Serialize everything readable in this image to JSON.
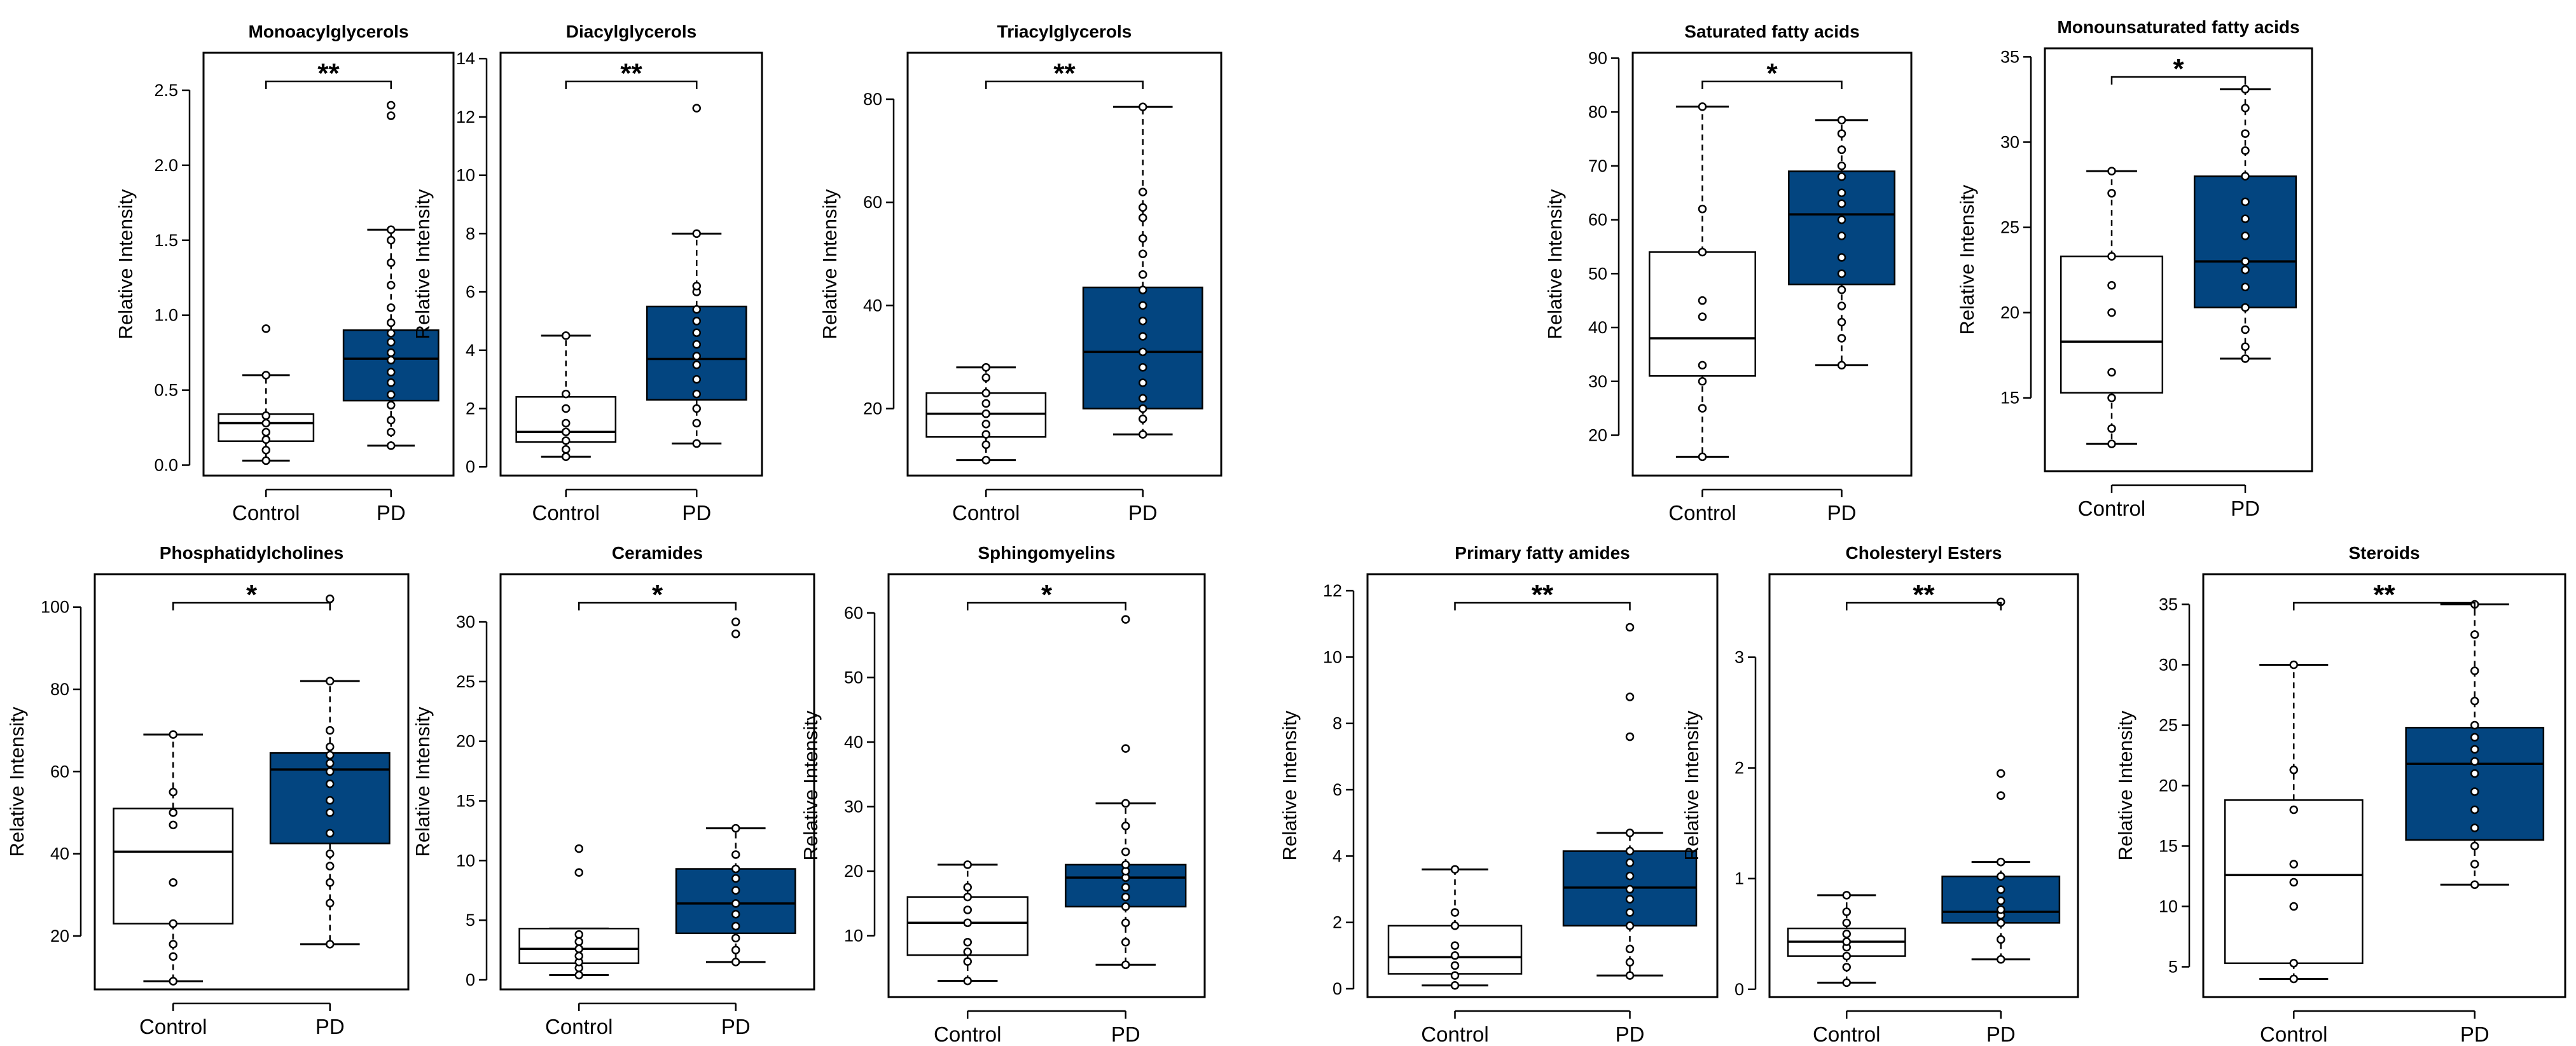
{
  "colors": {
    "control_fill": "#ffffff",
    "pd_fill": "#034580",
    "stroke": "#000000"
  },
  "chart_data": [
    {
      "type": "boxplot",
      "title": "Monoacylglycerols",
      "ylabel": "Relative Intensity",
      "categories": [
        "Control",
        "PD"
      ],
      "yticks": [
        0.0,
        0.5,
        1.0,
        1.5,
        2.0,
        2.5
      ],
      "ytick_labels": [
        "0.0",
        "0.5",
        "1.0",
        "1.5",
        "2.0",
        "2.5"
      ],
      "ylim": [
        -0.07,
        2.75
      ],
      "significance": "**",
      "boxes": [
        {
          "group": "Control",
          "whisker_low": 0.03,
          "q1": 0.16,
          "median": 0.28,
          "q3": 0.34,
          "whisker_high": 0.6,
          "points": [
            0.03,
            0.1,
            0.17,
            0.22,
            0.28,
            0.33,
            0.6,
            0.91
          ]
        },
        {
          "group": "PD",
          "whisker_low": 0.13,
          "q1": 0.43,
          "median": 0.71,
          "q3": 0.9,
          "whisker_high": 1.57,
          "points": [
            0.13,
            0.22,
            0.3,
            0.4,
            0.47,
            0.55,
            0.62,
            0.7,
            0.75,
            0.82,
            0.88,
            0.95,
            1.05,
            1.2,
            1.35,
            1.5,
            1.57,
            2.33,
            2.4
          ]
        }
      ]
    },
    {
      "type": "boxplot",
      "title": "Diacylglycerols",
      "ylabel": "Relative Intensity",
      "categories": [
        "Control",
        "PD"
      ],
      "yticks": [
        0,
        2,
        4,
        6,
        8,
        10,
        12,
        14
      ],
      "ytick_labels": [
        "0",
        "2",
        "4",
        "6",
        "8",
        "10",
        "12",
        "14"
      ],
      "ylim": [
        -0.3,
        14.2
      ],
      "significance": "**",
      "boxes": [
        {
          "group": "Control",
          "whisker_low": 0.35,
          "q1": 0.85,
          "median": 1.2,
          "q3": 2.4,
          "whisker_high": 4.5,
          "points": [
            0.35,
            0.6,
            0.9,
            1.2,
            1.5,
            2.0,
            2.5,
            4.5
          ]
        },
        {
          "group": "PD",
          "whisker_low": 0.8,
          "q1": 2.3,
          "median": 3.7,
          "q3": 5.5,
          "whisker_high": 8.0,
          "points": [
            0.8,
            1.5,
            2.0,
            2.5,
            3.0,
            3.5,
            3.8,
            4.2,
            4.6,
            5.0,
            5.4,
            6.0,
            6.2,
            8.0,
            12.3
          ]
        }
      ]
    },
    {
      "type": "boxplot",
      "title": "Triacylglycerols",
      "ylabel": "Relative Intensity",
      "categories": [
        "Control",
        "PD"
      ],
      "yticks": [
        20,
        40,
        60,
        80
      ],
      "ytick_labels": [
        "20",
        "40",
        "60",
        "80"
      ],
      "ylim": [
        7,
        89
      ],
      "significance": "**",
      "boxes": [
        {
          "group": "Control",
          "whisker_low": 10,
          "q1": 14.5,
          "median": 19,
          "q3": 23,
          "whisker_high": 28,
          "points": [
            10,
            13,
            15,
            17,
            19,
            21,
            23,
            26,
            28
          ]
        },
        {
          "group": "PD",
          "whisker_low": 15,
          "q1": 20,
          "median": 31,
          "q3": 43.5,
          "whisker_high": 78.5,
          "points": [
            15,
            18,
            20,
            22,
            25,
            28,
            31,
            34,
            37,
            40,
            43,
            46,
            50,
            53,
            57,
            59,
            62,
            78.5
          ]
        }
      ]
    },
    {
      "type": "boxplot",
      "title": "Saturated fatty acids",
      "ylabel": "Relative Intensity",
      "categories": [
        "Control",
        "PD"
      ],
      "yticks": [
        20,
        30,
        40,
        50,
        60,
        70,
        80,
        90
      ],
      "ytick_labels": [
        "20",
        "30",
        "40",
        "50",
        "60",
        "70",
        "80",
        "90"
      ],
      "ylim": [
        12.5,
        91
      ],
      "significance": "*",
      "boxes": [
        {
          "group": "Control",
          "whisker_low": 16,
          "q1": 31,
          "median": 38,
          "q3": 54,
          "whisker_high": 81,
          "points": [
            16,
            25,
            30,
            33,
            42,
            45,
            54,
            62,
            81
          ]
        },
        {
          "group": "PD",
          "whisker_low": 33,
          "q1": 48,
          "median": 61,
          "q3": 69,
          "whisker_high": 78.5,
          "points": [
            33,
            38,
            41,
            44,
            47,
            50,
            53,
            57,
            60,
            63,
            65,
            68,
            70,
            73,
            76,
            78.5
          ]
        }
      ]
    },
    {
      "type": "boxplot",
      "title": "Monounsaturated fatty acids",
      "ylabel": "Relative Intensity",
      "categories": [
        "Control",
        "PD"
      ],
      "yticks": [
        15,
        20,
        25,
        30,
        35
      ],
      "ytick_labels": [
        "15",
        "20",
        "25",
        "30",
        "35"
      ],
      "ylim": [
        10.7,
        35.5
      ],
      "significance": "*",
      "boxes": [
        {
          "group": "Control",
          "whisker_low": 12.3,
          "q1": 15.3,
          "median": 18.3,
          "q3": 23.3,
          "whisker_high": 28.3,
          "points": [
            12.3,
            13.2,
            15,
            16.5,
            20,
            21.6,
            23.3,
            27,
            28.3
          ]
        },
        {
          "group": "PD",
          "whisker_low": 17.3,
          "q1": 20.3,
          "median": 23,
          "q3": 28,
          "whisker_high": 33.1,
          "points": [
            17.3,
            18,
            19,
            20.3,
            21.5,
            22.5,
            23,
            24.5,
            25.5,
            26.5,
            28,
            29.5,
            30.5,
            32,
            33.1
          ]
        }
      ]
    },
    {
      "type": "boxplot",
      "title": "Phosphatidylcholines",
      "ylabel": "Relative Intensity",
      "categories": [
        "Control",
        "PD"
      ],
      "yticks": [
        20,
        40,
        60,
        80,
        100
      ],
      "ytick_labels": [
        "20",
        "40",
        "60",
        "80",
        "100"
      ],
      "ylim": [
        7,
        108
      ],
      "significance": "*",
      "boxes": [
        {
          "group": "Control",
          "whisker_low": 9,
          "q1": 23,
          "median": 40.5,
          "q3": 51,
          "whisker_high": 69,
          "points": [
            9,
            15,
            18,
            23,
            33,
            47,
            50,
            55,
            69
          ]
        },
        {
          "group": "PD",
          "whisker_low": 18,
          "q1": 42.5,
          "median": 60.5,
          "q3": 64.5,
          "whisker_high": 82,
          "points": [
            18,
            28,
            33,
            37,
            40,
            45,
            50,
            53,
            57,
            60,
            62,
            64,
            66,
            70,
            82,
            102
          ]
        }
      ]
    },
    {
      "type": "boxplot",
      "title": "Ceramides",
      "ylabel": "Relative Intensity",
      "categories": [
        "Control",
        "PD"
      ],
      "yticks": [
        0,
        5,
        10,
        15,
        20,
        25,
        30
      ],
      "ytick_labels": [
        "0",
        "5",
        "10",
        "15",
        "20",
        "25",
        "30"
      ],
      "ylim": [
        -0.8,
        34
      ],
      "significance": "*",
      "boxes": [
        {
          "group": "Control",
          "whisker_low": 0.4,
          "q1": 1.4,
          "median": 2.6,
          "q3": 4.3,
          "whisker_high": 4.3,
          "points": [
            0.4,
            1.0,
            1.5,
            2.0,
            2.6,
            3.2,
            3.8,
            9.0,
            11.0
          ]
        },
        {
          "group": "PD",
          "whisker_low": 1.5,
          "q1": 3.9,
          "median": 6.4,
          "q3": 9.3,
          "whisker_high": 12.7,
          "points": [
            1.5,
            2.5,
            3.5,
            4.5,
            5.5,
            6.4,
            7.5,
            8.5,
            9.3,
            10.5,
            12.7,
            29.0,
            30.0
          ]
        }
      ]
    },
    {
      "type": "boxplot",
      "title": "Sphingomyelins",
      "ylabel": "Relative Intensity",
      "categories": [
        "Control",
        "PD"
      ],
      "yticks": [
        10,
        20,
        30,
        40,
        50,
        60
      ],
      "ytick_labels": [
        "10",
        "20",
        "30",
        "40",
        "50",
        "60"
      ],
      "ylim": [
        0.5,
        66
      ],
      "significance": "*",
      "boxes": [
        {
          "group": "Control",
          "whisker_low": 3,
          "q1": 7,
          "median": 12,
          "q3": 16,
          "whisker_high": 21,
          "points": [
            3,
            6,
            7.5,
            9,
            12,
            14,
            16,
            17.5,
            21
          ]
        },
        {
          "group": "PD",
          "whisker_low": 5.5,
          "q1": 14.5,
          "median": 19,
          "q3": 21,
          "whisker_high": 30.5,
          "points": [
            5.5,
            9,
            12,
            14.5,
            16,
            17.5,
            19,
            20,
            21,
            23,
            27,
            30.5,
            39,
            59
          ]
        }
      ]
    },
    {
      "type": "boxplot",
      "title": "Primary fatty amides",
      "ylabel": "Relative Intensity",
      "categories": [
        "Control",
        "PD"
      ],
      "yticks": [
        0,
        2,
        4,
        6,
        8,
        10,
        12
      ],
      "ytick_labels": [
        "0",
        "2",
        "4",
        "6",
        "8",
        "10",
        "12"
      ],
      "ylim": [
        -0.25,
        12.5
      ],
      "significance": "**",
      "boxes": [
        {
          "group": "Control",
          "whisker_low": 0.1,
          "q1": 0.45,
          "median": 0.95,
          "q3": 1.9,
          "whisker_high": 3.6,
          "points": [
            0.1,
            0.4,
            0.7,
            1.0,
            1.3,
            1.9,
            2.3,
            3.6
          ]
        },
        {
          "group": "PD",
          "whisker_low": 0.4,
          "q1": 1.9,
          "median": 3.05,
          "q3": 4.15,
          "whisker_high": 4.7,
          "points": [
            0.4,
            0.8,
            1.2,
            1.9,
            2.3,
            2.7,
            3.0,
            3.4,
            3.8,
            4.15,
            4.7,
            7.6,
            8.8,
            10.9
          ]
        }
      ]
    },
    {
      "type": "boxplot",
      "title": "Cholesteryl Esters",
      "ylabel": "Relative Intensity",
      "categories": [
        "Control",
        "PD"
      ],
      "yticks": [
        0,
        1,
        2,
        3
      ],
      "ytick_labels": [
        "0",
        "1",
        "2",
        "3"
      ],
      "ylim": [
        -0.07,
        3.75
      ],
      "significance": "**",
      "boxes": [
        {
          "group": "Control",
          "whisker_low": 0.06,
          "q1": 0.3,
          "median": 0.43,
          "q3": 0.55,
          "whisker_high": 0.85,
          "points": [
            0.06,
            0.2,
            0.3,
            0.38,
            0.43,
            0.5,
            0.6,
            0.7,
            0.85
          ]
        },
        {
          "group": "PD",
          "whisker_low": 0.27,
          "q1": 0.6,
          "median": 0.7,
          "q3": 1.02,
          "whisker_high": 1.15,
          "points": [
            0.27,
            0.45,
            0.6,
            0.67,
            0.72,
            0.8,
            0.9,
            1.02,
            1.15,
            1.75,
            1.95,
            3.5
          ]
        }
      ]
    },
    {
      "type": "boxplot",
      "title": "Steroids",
      "ylabel": "Relative Intensity",
      "categories": [
        "Control",
        "PD"
      ],
      "yticks": [
        5,
        10,
        15,
        20,
        25,
        30,
        35
      ],
      "ytick_labels": [
        "5",
        "10",
        "15",
        "20",
        "25",
        "30",
        "35"
      ],
      "ylim": [
        2.5,
        37.5
      ],
      "significance": "**",
      "boxes": [
        {
          "group": "Control",
          "whisker_low": 4,
          "q1": 5.3,
          "median": 12.6,
          "q3": 18.8,
          "whisker_high": 30,
          "points": [
            4,
            5.3,
            10,
            12,
            13.5,
            18,
            21.3,
            30
          ]
        },
        {
          "group": "PD",
          "whisker_low": 11.8,
          "q1": 15.5,
          "median": 21.8,
          "q3": 24.8,
          "whisker_high": 35,
          "points": [
            11.8,
            13.5,
            15,
            16.5,
            18,
            19.5,
            21,
            22,
            23,
            24,
            25,
            27,
            29.5,
            32.5,
            35
          ]
        }
      ]
    }
  ]
}
